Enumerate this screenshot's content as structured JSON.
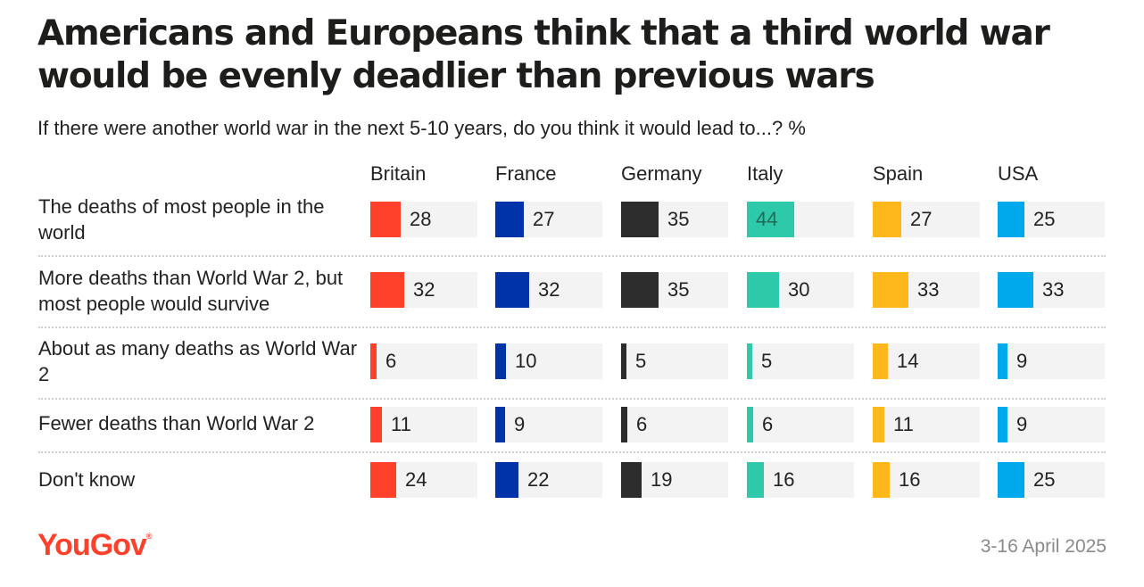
{
  "title": "Americans and Europeans think that a third world war would be evenly deadlier than previous wars",
  "subtitle": "If there were another world war in the next 5-10 years, do you think it would lead to...? %",
  "footer": {
    "brand": "YouGov",
    "date": "3-16 April 2025"
  },
  "chart_data": {
    "type": "bar",
    "unit": "%",
    "categories": [
      "The deaths of most people in the world",
      "More deaths than World War 2, but most people would survive",
      "About as many deaths as World War 2",
      "Fewer deaths than World War 2",
      "Don't know"
    ],
    "series": [
      {
        "name": "Britain",
        "color": "#ff412c",
        "values": [
          28,
          32,
          6,
          11,
          24
        ]
      },
      {
        "name": "France",
        "color": "#0033a8",
        "values": [
          27,
          32,
          10,
          9,
          22
        ]
      },
      {
        "name": "Germany",
        "color": "#2d2d2d",
        "values": [
          35,
          35,
          5,
          6,
          19
        ]
      },
      {
        "name": "Italy",
        "color": "#2ec9a8",
        "values": [
          44,
          30,
          5,
          6,
          16
        ]
      },
      {
        "name": "Spain",
        "color": "#ffb81c",
        "values": [
          27,
          33,
          14,
          11,
          16
        ]
      },
      {
        "name": "USA",
        "color": "#00a8ec",
        "values": [
          25,
          33,
          9,
          9,
          25
        ]
      }
    ]
  }
}
